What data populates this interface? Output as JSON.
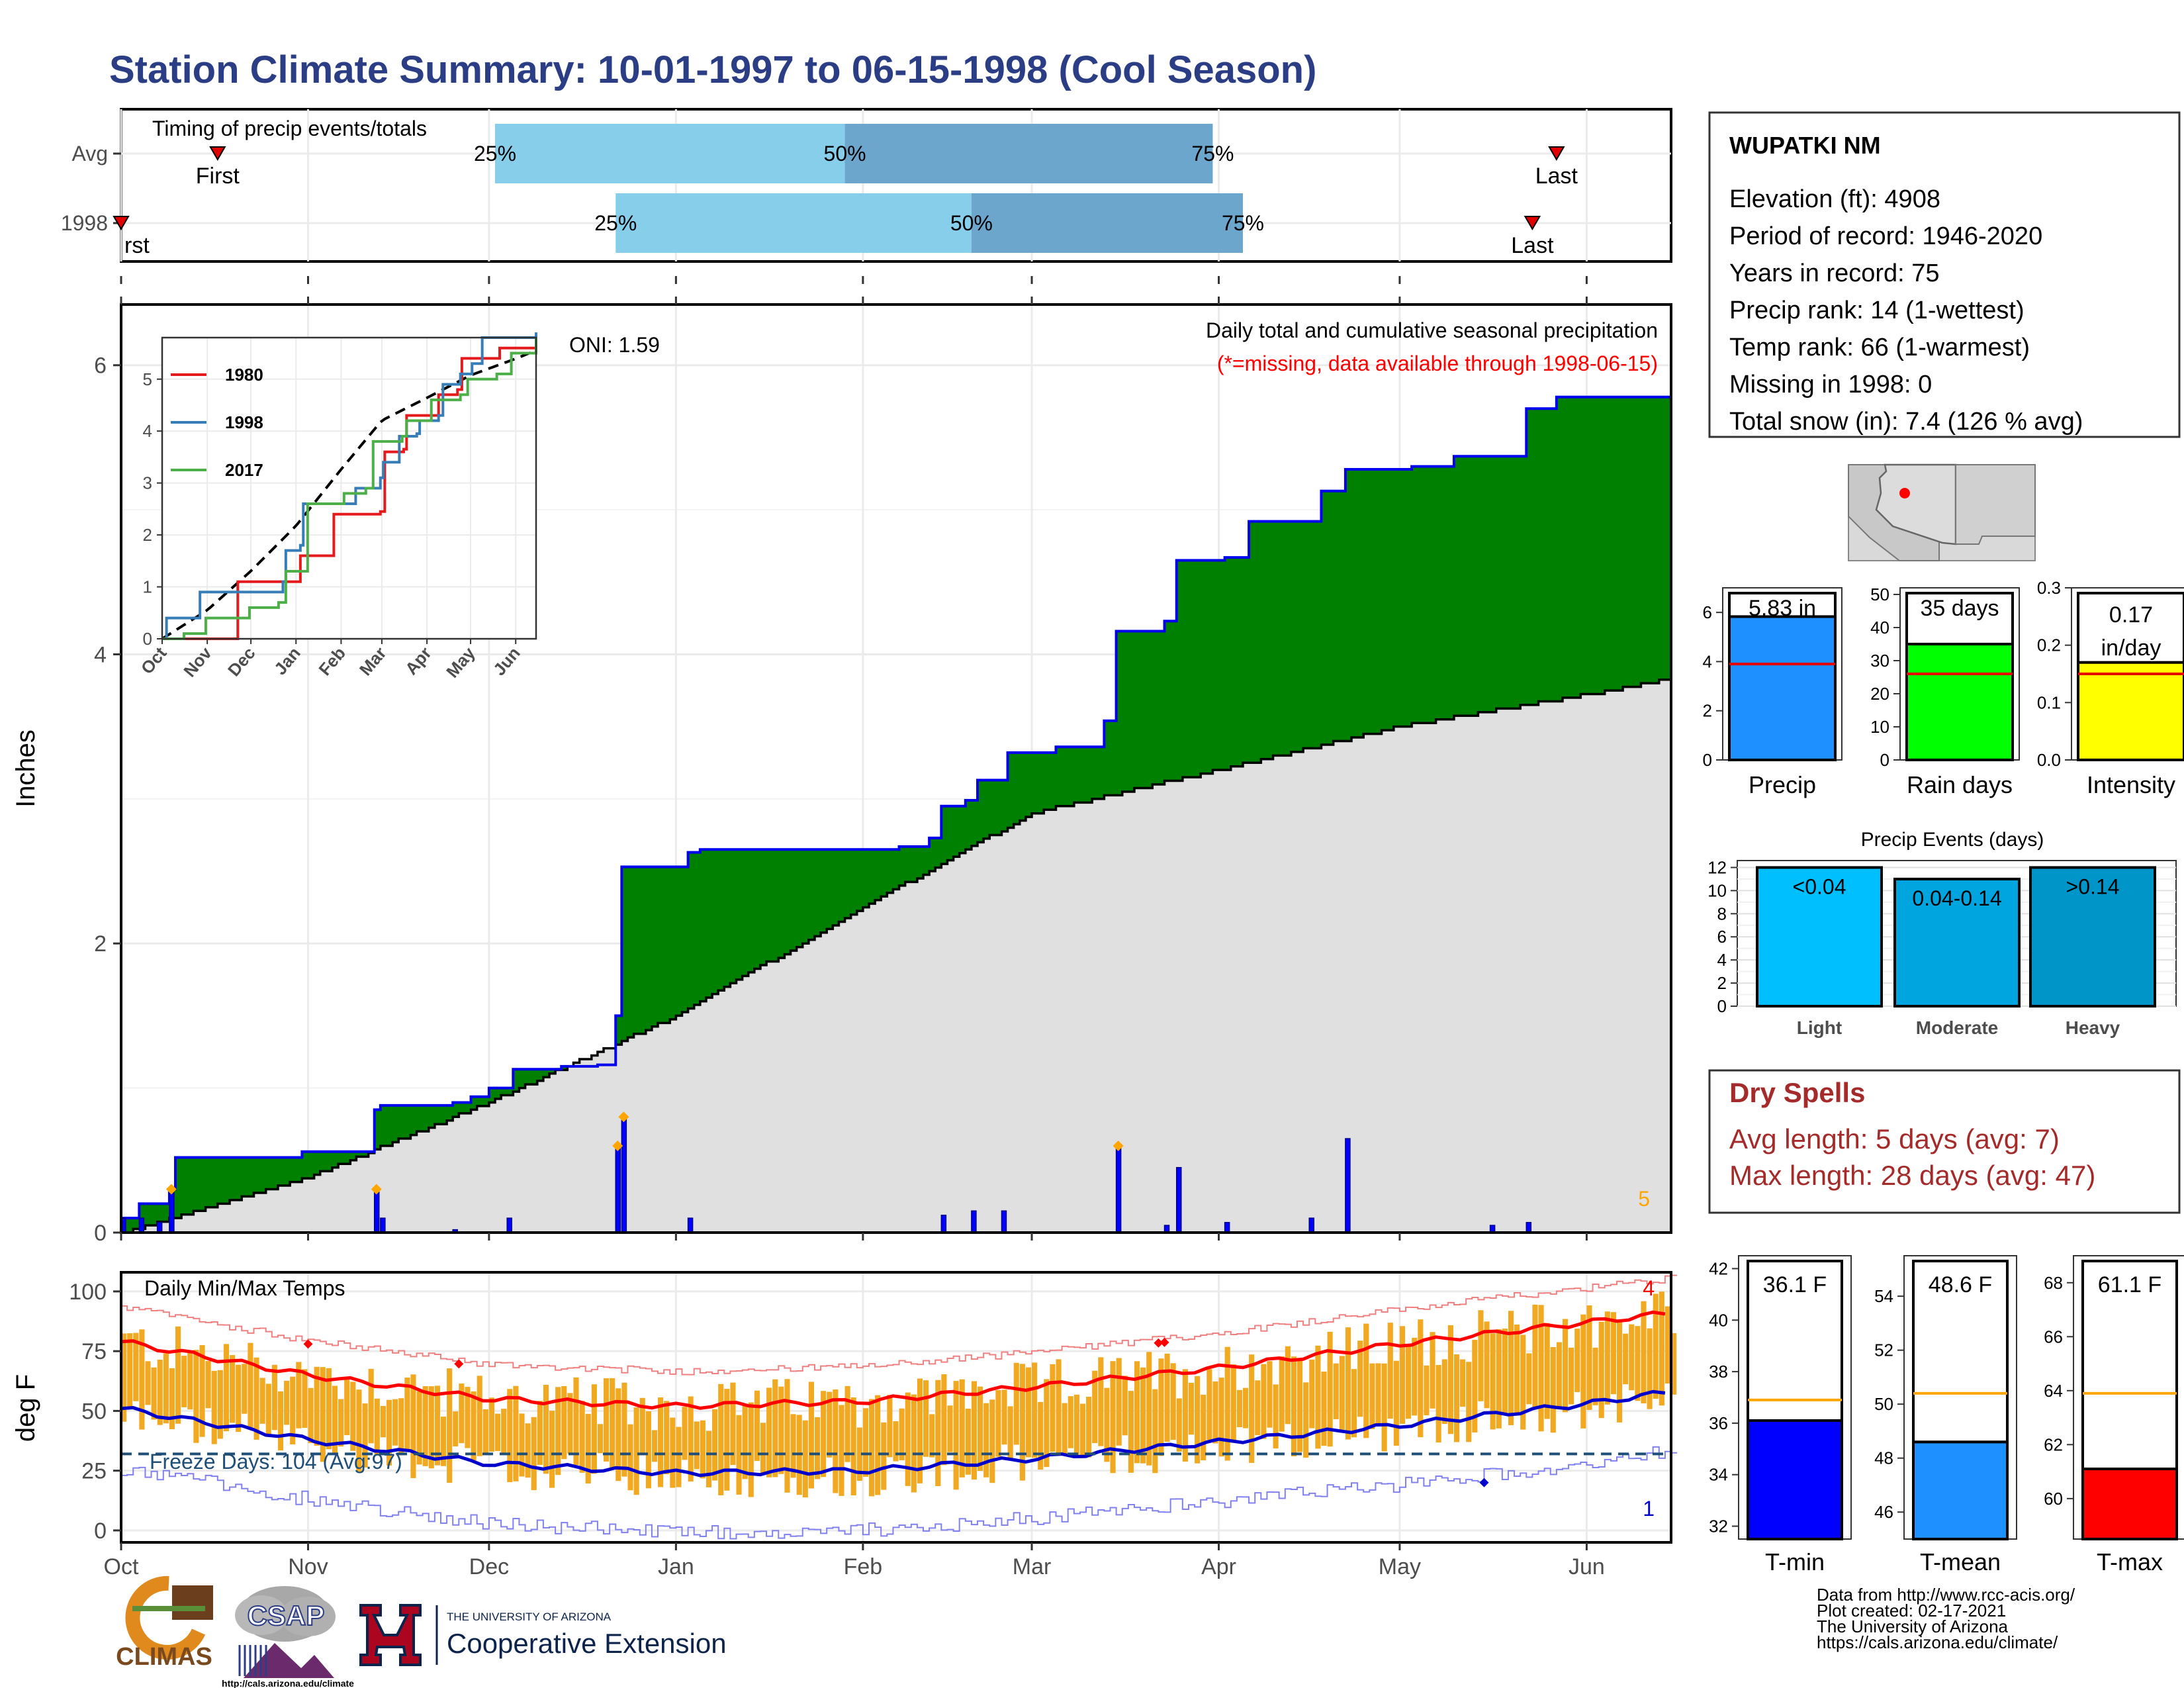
{
  "title": "Station Climate Summary: 10-01-1997 to 06-15-1998 (Cool Season)",
  "colors": {
    "title": "#2B3E85",
    "green": "#008000",
    "brown": "#7B4A00",
    "grey": "#E0E0E0",
    "blue": "#0000FF",
    "orange": "#F0A500",
    "red": "#FF0000",
    "light_blue": "#87CEEB",
    "mid_blue": "#6CA6CD",
    "drycolor": "#A52A2A"
  },
  "timing": {
    "title": "Timing of precip events/totals",
    "rows": [
      {
        "label": "Avg",
        "first_date": "1997-10-17",
        "p25": "1997-12-02",
        "p50": "1998-01-29",
        "p75": "1998-03-31",
        "last_date": "1998-05-27",
        "first_label": "First",
        "last_label": "Last",
        "pct": [
          "25%",
          "50%",
          "75%"
        ]
      },
      {
        "label": "1998",
        "first_date": "1997-10-01",
        "p25": "1997-12-22",
        "p50": "1998-02-19",
        "p75": "1998-04-05",
        "last_date": "1998-05-23",
        "first_label": "rst",
        "last_label": "Last",
        "pct": [
          "25%",
          "50%",
          "75%"
        ]
      }
    ]
  },
  "main": {
    "ylabel": "Inches",
    "header": "Daily total and cumulative seasonal precipitation",
    "subheader": "(*=missing, data available through 1998-06-15)",
    "oni": "ONI: 1.59",
    "count_label": "5",
    "yticks": [
      "0",
      "2",
      "4",
      "6"
    ]
  },
  "inset": {
    "yticks": [
      "0",
      "1",
      "2",
      "3",
      "4",
      "5"
    ],
    "xticks": [
      "Oct",
      "Nov",
      "Dec",
      "Jan",
      "Feb",
      "Mar",
      "Apr",
      "May",
      "Jun"
    ],
    "legend": [
      {
        "name": "1980",
        "color": "#E41A1C"
      },
      {
        "name": "1998",
        "color": "#377EB8"
      },
      {
        "name": "2017",
        "color": "#4DAF4A"
      }
    ]
  },
  "temps": {
    "title": "Daily Min/Max Temps",
    "ylabel": "deg F",
    "yticks": [
      "0",
      "25",
      "50",
      "75",
      "100"
    ],
    "freeze_label": "Freeze Days: 104 (Avg:97)",
    "max_count": "4",
    "min_count": "1"
  },
  "xaxis": [
    "Oct",
    "Nov",
    "Dec",
    "Jan",
    "Feb",
    "Mar",
    "Apr",
    "May",
    "Jun"
  ],
  "station": {
    "name": "WUPATKI NM",
    "lines": [
      "Elevation (ft): 4908",
      "Period of record: 1946-2020",
      "Years in record: 75",
      "Precip rank: 14 (1-wettest)",
      "Temp rank: 66 (1-warmest)",
      "Missing in 1998: 0",
      "Total snow (in): 7.4 (126 % avg)"
    ]
  },
  "summary_bars": [
    {
      "name": "Precip",
      "label": "5.83 in",
      "value": 5.83,
      "avg": 3.9,
      "ymax": 7,
      "ticks": [
        "0",
        "2",
        "4",
        "6"
      ],
      "color": "#1E90FF"
    },
    {
      "name": "Rain days",
      "label": "35 days",
      "value": 35,
      "avg": 26,
      "ymax": 52,
      "ticks": [
        "0",
        "10",
        "20",
        "30",
        "40",
        "50"
      ],
      "color": "#00FF00"
    },
    {
      "name": "Intensity",
      "label": "0.17 in/day",
      "label1": "0.17",
      "label2": "in/day",
      "value": 0.17,
      "avg": 0.15,
      "ymax": 0.3,
      "ticks": [
        "0.0",
        "0.1",
        "0.2",
        "0.3"
      ],
      "color": "#FFFF00"
    }
  ],
  "events": {
    "title": "Precip Events (days)",
    "ticks": [
      "0",
      "2",
      "4",
      "6",
      "8",
      "10",
      "12"
    ],
    "bars": [
      {
        "name": "Light",
        "label": "<0.04",
        "value": 12,
        "color": "#00BFFF"
      },
      {
        "name": "Moderate",
        "label": "0.04-0.14",
        "value": 11,
        "color": "#00A5E0"
      },
      {
        "name": "Heavy",
        "label": ">0.14",
        "value": 12,
        "color": "#0095C8"
      }
    ]
  },
  "dry": {
    "title": "Dry Spells",
    "avg": "Avg length: 5 days (avg: 7)",
    "max": "Max length: 28 days (avg: 47)"
  },
  "temp_bars": [
    {
      "name": "T-min",
      "label": "36.1 F",
      "value": 36.1,
      "avg": 36.9,
      "ymin": 31.5,
      "ymax": 42.5,
      "ticks": [
        32,
        34,
        36,
        38,
        40,
        42
      ],
      "color": "#0000FF"
    },
    {
      "name": "T-mean",
      "label": "48.6 F",
      "value": 48.6,
      "avg": 50.4,
      "ymin": 45,
      "ymax": 55.5,
      "ticks": [
        46,
        48,
        50,
        52,
        54
      ],
      "color": "#1E90FF"
    },
    {
      "name": "T-max",
      "label": "61.1 F",
      "value": 61.1,
      "avg": 63.9,
      "ymin": 58.5,
      "ymax": 69,
      "ticks": [
        60,
        62,
        64,
        66,
        68
      ],
      "color": "#FF0000"
    }
  ],
  "footer": [
    "Data from http://www.rcc-acis.org/",
    "Plot created: 02-17-2021",
    "The University of Arizona",
    "https://cals.arizona.edu/climate/"
  ],
  "logos": {
    "climas": "CLIMAS",
    "csap": "CSAP",
    "csap_url": "http://cals.arizona.edu/climate",
    "ua_line1": "THE UNIVERSITY OF ARIZONA",
    "ua_line2": "Cooperative Extension"
  },
  "chart_data": {
    "type": "area",
    "title": "Daily total and cumulative seasonal precipitation",
    "ylabel": "Inches",
    "ylim": [
      0,
      6.3
    ],
    "cumulative_1998": [
      [
        "1997-10-01",
        0.1
      ],
      [
        "1997-10-04",
        0.2
      ],
      [
        "1997-10-09",
        0.3
      ],
      [
        "1997-10-10",
        0.52
      ],
      [
        "1997-10-31",
        0.56
      ],
      [
        "1997-11-12",
        0.85
      ],
      [
        "1997-11-13",
        0.88
      ],
      [
        "1997-11-25",
        0.9
      ],
      [
        "1997-11-28",
        0.94
      ],
      [
        "1997-12-01",
        1.0
      ],
      [
        "1997-12-05",
        1.13
      ],
      [
        "1997-12-13",
        1.15
      ],
      [
        "1997-12-19",
        1.16
      ],
      [
        "1997-12-22",
        1.5
      ],
      [
        "1997-12-23",
        2.53
      ],
      [
        "1998-01-03",
        2.63
      ],
      [
        "1998-01-05",
        2.65
      ],
      [
        "1998-02-07",
        2.67
      ],
      [
        "1998-02-12",
        2.73
      ],
      [
        "1998-02-14",
        2.95
      ],
      [
        "1998-02-18",
        2.99
      ],
      [
        "1998-02-20",
        3.13
      ],
      [
        "1998-02-25",
        3.32
      ],
      [
        "1998-03-05",
        3.36
      ],
      [
        "1998-03-13",
        3.54
      ],
      [
        "1998-03-15",
        4.16
      ],
      [
        "1998-03-23",
        4.23
      ],
      [
        "1998-03-25",
        4.65
      ],
      [
        "1998-04-02",
        4.67
      ],
      [
        "1998-04-06",
        4.92
      ],
      [
        "1998-04-18",
        5.13
      ],
      [
        "1998-04-22",
        5.28
      ],
      [
        "1998-05-03",
        5.3
      ],
      [
        "1998-05-10",
        5.37
      ],
      [
        "1998-05-22",
        5.7
      ],
      [
        "1998-05-27",
        5.78
      ],
      [
        "1998-06-15",
        5.83
      ]
    ],
    "average_cumulative": [
      [
        "1997-10-01",
        0.0
      ],
      [
        "1997-11-01",
        0.38
      ],
      [
        "1997-12-01",
        0.9
      ],
      [
        "1998-01-01",
        1.5
      ],
      [
        "1998-02-01",
        2.25
      ],
      [
        "1998-03-01",
        2.9
      ],
      [
        "1998-04-01",
        3.2
      ],
      [
        "1998-05-01",
        3.5
      ],
      [
        "1998-06-01",
        3.72
      ],
      [
        "1998-06-15",
        3.83
      ]
    ],
    "daily": [
      [
        "1997-10-01",
        0.1
      ],
      [
        "1997-10-04",
        0.1
      ],
      [
        "1997-10-07",
        0.07
      ],
      [
        "1997-10-09",
        0.3
      ],
      [
        "1997-11-12",
        0.3
      ],
      [
        "1997-11-13",
        0.1
      ],
      [
        "1997-11-25",
        0.02
      ],
      [
        "1997-12-04",
        0.1
      ],
      [
        "1997-12-22",
        0.6
      ],
      [
        "1997-12-23",
        0.8
      ],
      [
        "1998-01-03",
        0.1
      ],
      [
        "1998-02-14",
        0.12
      ],
      [
        "1998-02-19",
        0.15
      ],
      [
        "1998-02-24",
        0.15
      ],
      [
        "1998-03-15",
        0.6
      ],
      [
        "1998-03-23",
        0.05
      ],
      [
        "1998-03-25",
        0.45
      ],
      [
        "1998-04-02",
        0.07
      ],
      [
        "1998-04-16",
        0.1
      ],
      [
        "1998-04-22",
        0.65
      ],
      [
        "1998-05-16",
        0.05
      ],
      [
        "1998-05-22",
        0.07
      ]
    ],
    "temperature": {
      "ylim": [
        -5,
        108
      ],
      "avg_max": [
        [
          "1997-10-01",
          79
        ],
        [
          "1997-11-01",
          65
        ],
        [
          "1997-12-01",
          55
        ],
        [
          "1998-01-01",
          52
        ],
        [
          "1998-02-01",
          54
        ],
        [
          "1998-03-01",
          60
        ],
        [
          "1998-04-01",
          68
        ],
        [
          "1998-05-01",
          78
        ],
        [
          "1998-06-01",
          87
        ],
        [
          "1998-06-15",
          91
        ]
      ],
      "avg_min": [
        [
          "1997-10-01",
          51
        ],
        [
          "1997-11-01",
          38
        ],
        [
          "1997-12-01",
          28
        ],
        [
          "1998-01-01",
          24
        ],
        [
          "1998-02-01",
          25
        ],
        [
          "1998-03-01",
          30
        ],
        [
          "1998-04-01",
          37
        ],
        [
          "1998-05-01",
          44
        ],
        [
          "1998-06-01",
          53
        ],
        [
          "1998-06-15",
          58
        ]
      ],
      "freeze_threshold": 32
    }
  }
}
